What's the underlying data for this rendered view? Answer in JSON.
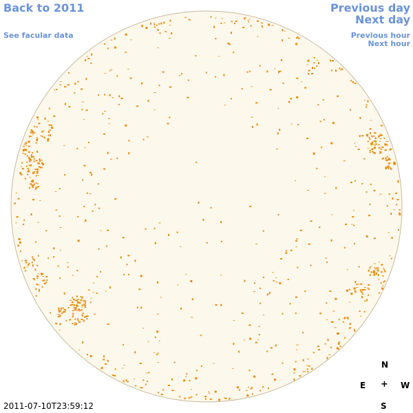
{
  "nav": {
    "back_label": "Back to 2011",
    "facular_label": "See facular data",
    "prev_day_label": "Previous day",
    "next_day_label": "Next day",
    "prev_hour_label": "Previous hour",
    "next_hour_label": "Next hour"
  },
  "compass": {
    "north": "N",
    "east": "E",
    "center": "+",
    "west": "W",
    "south": "S"
  },
  "timestamp": "2011-07-10T23:59:12",
  "colors": {
    "link": "#6b93d8",
    "disk_fill": "#fdf8ec",
    "disk_outline": "#c8b89a",
    "facula": "#e88a0c"
  }
}
